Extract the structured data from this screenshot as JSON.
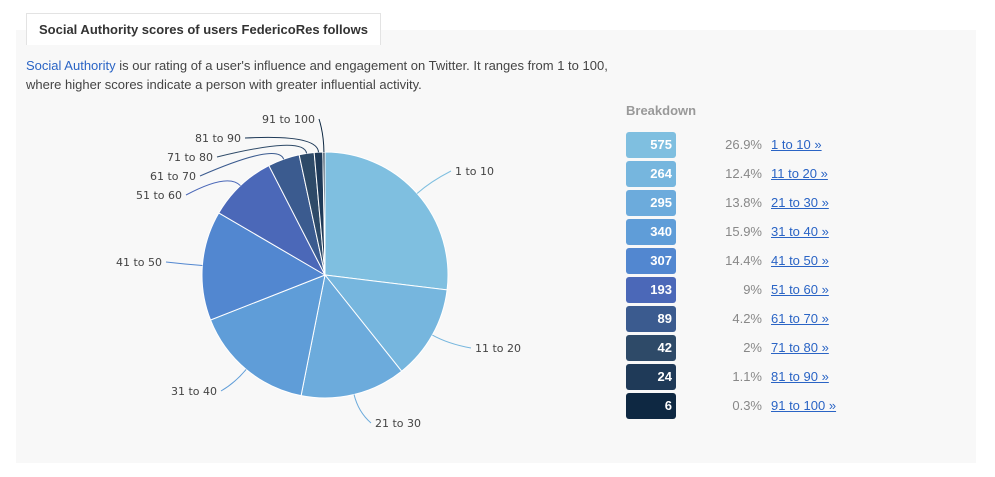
{
  "header": {
    "title": "Social Authority scores of users FedericoRes follows"
  },
  "description": {
    "link": "Social Authority",
    "text": " is our rating of a user's influence and engagement on Twitter. It ranges from 1 to 100, where higher scores indicate a person with greater influential activity."
  },
  "breakdown": {
    "title": "Breakdown",
    "rows": [
      {
        "count": "575",
        "pct": "26.9%",
        "link": "1 to 10 »",
        "color": "#7fbfe0"
      },
      {
        "count": "264",
        "pct": "12.4%",
        "link": "11 to 20 »",
        "color": "#76b6de"
      },
      {
        "count": "295",
        "pct": "13.8%",
        "link": "21 to 30 »",
        "color": "#6cabdc"
      },
      {
        "count": "340",
        "pct": "15.9%",
        "link": "31 to 40 »",
        "color": "#5f9dd8"
      },
      {
        "count": "307",
        "pct": "14.4%",
        "link": "41 to 50 »",
        "color": "#5287d0"
      },
      {
        "count": "193",
        "pct": "9%",
        "link": "51 to 60 »",
        "color": "#4b68b8"
      },
      {
        "count": "89",
        "pct": "4.2%",
        "link": "61 to 70 »",
        "color": "#3b5b8f"
      },
      {
        "count": "42",
        "pct": "2%",
        "link": "71 to 80 »",
        "color": "#2e4a68"
      },
      {
        "count": "24",
        "pct": "1.1%",
        "link": "81 to 90 »",
        "color": "#1f3a58"
      },
      {
        "count": "6",
        "pct": "0.3%",
        "link": "91 to 100 »",
        "color": "#0e2842"
      }
    ]
  },
  "chart_data": {
    "type": "pie",
    "categories": [
      "1 to 10",
      "11 to 20",
      "21 to 30",
      "31 to 40",
      "41 to 50",
      "51 to 60",
      "61 to 70",
      "71 to 80",
      "81 to 90",
      "91 to 100"
    ],
    "values": [
      575,
      264,
      295,
      340,
      307,
      193,
      89,
      42,
      24,
      6
    ],
    "colors": [
      "#7fbfe0",
      "#76b6de",
      "#6cabdc",
      "#5f9dd8",
      "#5287d0",
      "#4b68b8",
      "#3b5b8f",
      "#2e4a68",
      "#1f3a58",
      "#0e2842"
    ],
    "start": "top, clockwise",
    "legend": "none"
  }
}
